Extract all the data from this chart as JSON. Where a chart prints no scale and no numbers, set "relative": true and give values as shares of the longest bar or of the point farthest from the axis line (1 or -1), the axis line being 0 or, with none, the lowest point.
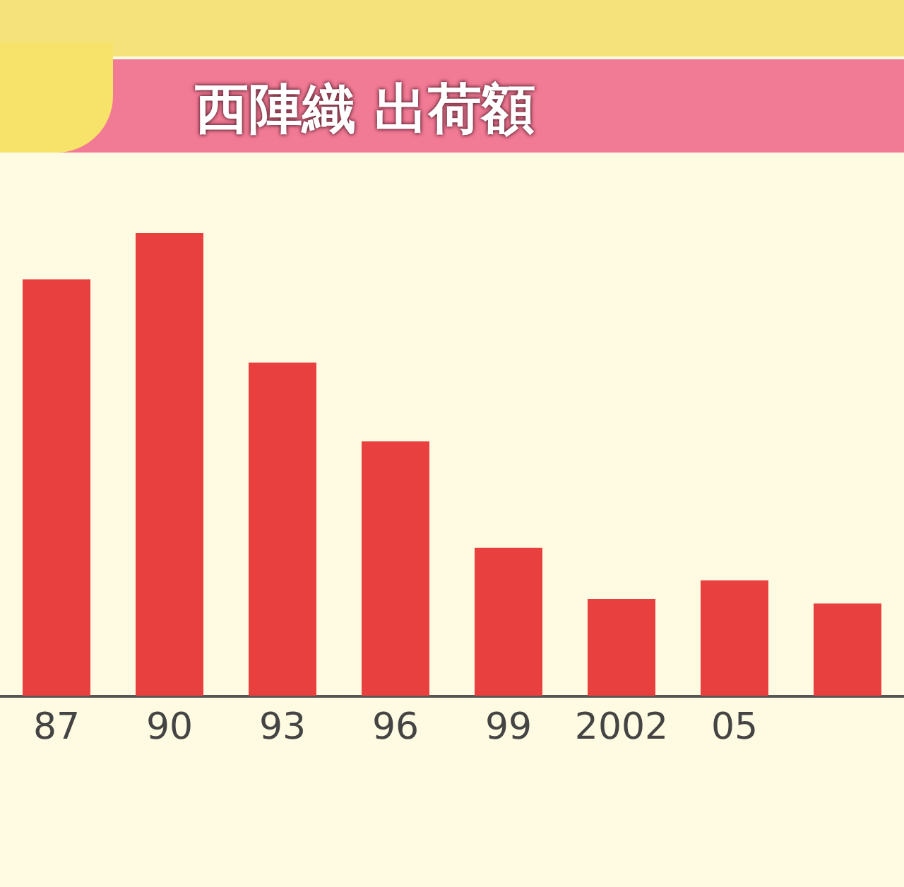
{
  "chart_data": {
    "type": "bar",
    "title": "西陣織 出荷額",
    "relative": true,
    "categories": [
      "87",
      "90",
      "93",
      "96",
      "99",
      "2002",
      "05",
      null
    ],
    "values": [
      0.9,
      1,
      0.72,
      0.55,
      0.32,
      0.21,
      0.25,
      0.2
    ],
    "color": "#e8403f",
    "grid": false,
    "legend": false
  }
}
